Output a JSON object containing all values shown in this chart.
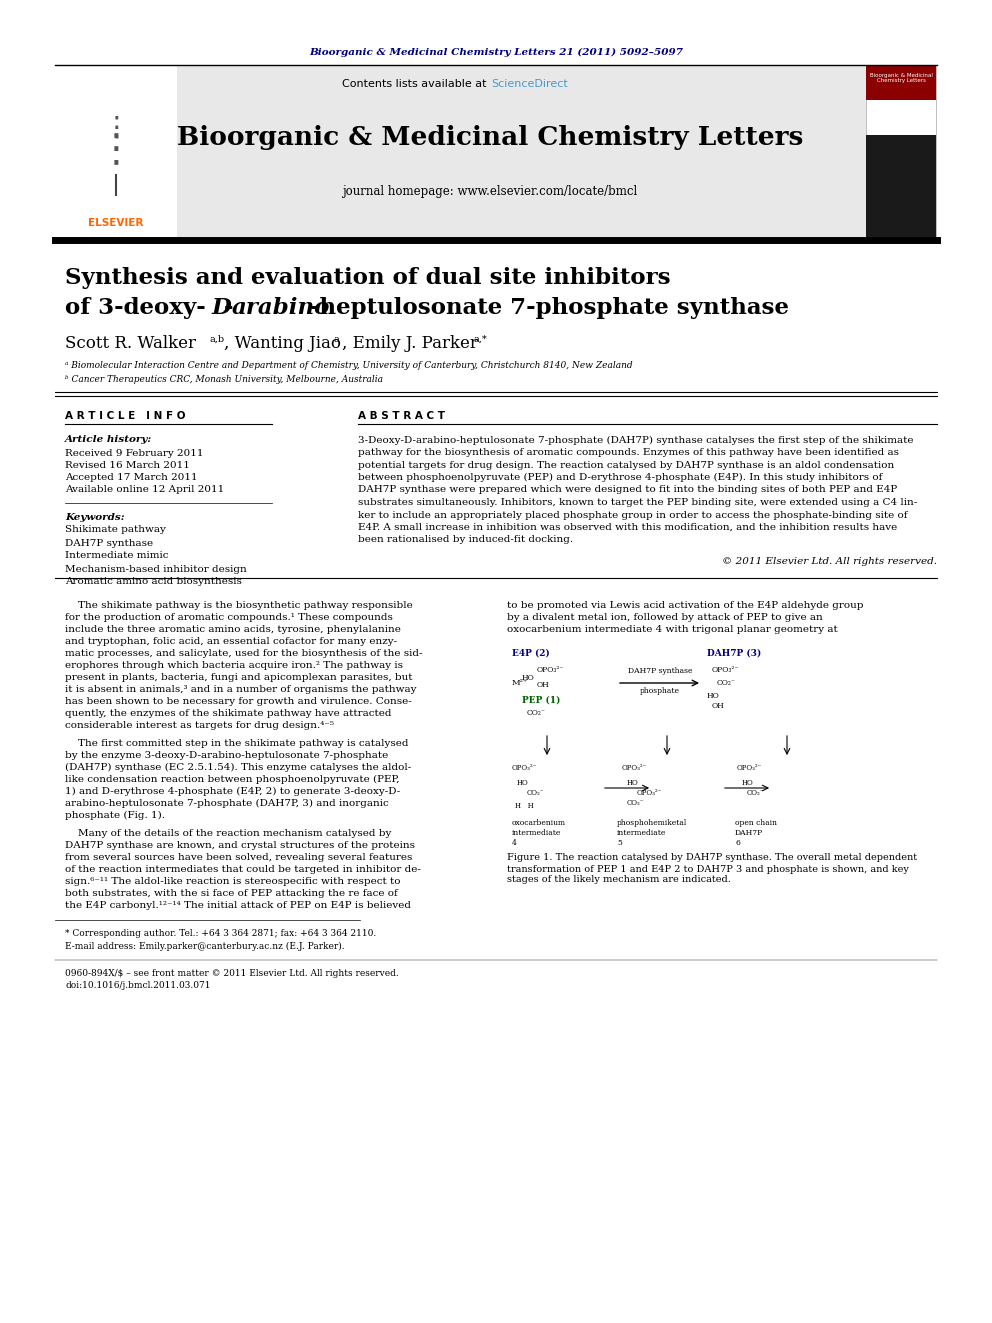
{
  "page_bg": "#ffffff",
  "journal_ref": "Bioorganic & Medicinal Chemistry Letters 21 (2011) 5092–5097",
  "journal_ref_color": "#000080",
  "journal_name": "Bioorganic & Medicinal Chemistry Letters",
  "journal_homepage": "journal homepage: www.elsevier.com/locate/bmcl",
  "contents_text": "Contents lists available at ",
  "sciencedirect_text": "ScienceDirect",
  "sciencedirect_color": "#4499cc",
  "header_bg": "#e8e8e8",
  "title_line1": "Synthesis and evaluation of dual site inhibitors",
  "article_info_header": "A R T I C L E   I N F O",
  "abstract_header": "A B S T R A C T",
  "article_history_label": "Article history:",
  "received": "Received 9 February 2011",
  "revised": "Revised 16 March 2011",
  "accepted": "Accepted 17 March 2011",
  "available": "Available online 12 April 2011",
  "keywords_label": "Keywords:",
  "keywords": [
    "Shikimate pathway",
    "DAH7P synthase",
    "Intermediate mimic",
    "Mechanism-based inhibitor design",
    "Aromatic amino acid biosynthesis"
  ],
  "copyright": "© 2011 Elsevier Ltd. All rights reserved.",
  "affil_a": "ᵃ Biomolecular Interaction Centre and Department of Chemistry, University of Canterbury, Christchurch 8140, New Zealand",
  "affil_b": "ᵇ Cancer Therapeutics CRC, Monash University, Melbourne, Australia",
  "footnote1": "* Corresponding author. Tel.: +64 3 364 2871; fax: +64 3 364 2110.",
  "footnote2": "E-mail address: Emily.parker@canterbury.ac.nz (E.J. Parker).",
  "footer1": "0960-894X/$ – see front matter © 2011 Elsevier Ltd. All rights reserved.",
  "footer2": "doi:10.1016/j.bmcl.2011.03.071",
  "abstract_lines": [
    "3-Deoxy-D-arabino-heptulosonate 7-phosphate (DAH7P) synthase catalyses the first step of the shikimate",
    "pathway for the biosynthesis of aromatic compounds. Enzymes of this pathway have been identified as",
    "potential targets for drug design. The reaction catalysed by DAH7P synthase is an aldol condensation",
    "between phosphoenolpyruvate (PEP) and D-erythrose 4-phosphate (E4P). In this study inhibitors of",
    "DAH7P synthase were prepared which were designed to fit into the binding sites of both PEP and E4P",
    "substrates simultaneously. Inhibitors, known to target the PEP binding site, were extended using a C4 lin-",
    "ker to include an appropriately placed phosphate group in order to access the phosphate-binding site of",
    "E4P. A small increase in inhibition was observed with this modification, and the inhibition results have",
    "been rationalised by induced-fit docking."
  ],
  "col1_lines_p1": [
    "    The shikimate pathway is the biosynthetic pathway responsible",
    "for the production of aromatic compounds.¹ These compounds",
    "include the three aromatic amino acids, tyrosine, phenylalanine",
    "and tryptophan, folic acid, an essential cofactor for many enzy-",
    "matic processes, and salicylate, used for the biosynthesis of the sid-",
    "erophores through which bacteria acquire iron.² The pathway is",
    "present in plants, bacteria, fungi and apicomplexan parasites, but",
    "it is absent in animals,³ and in a number of organisms the pathway",
    "has been shown to be necessary for growth and virulence. Conse-",
    "quently, the enzymes of the shikimate pathway have attracted",
    "considerable interest as targets for drug design.⁴⁻⁵"
  ],
  "col1_lines_p2": [
    "    The first committed step in the shikimate pathway is catalysed",
    "by the enzyme 3-deoxy-D-arabino-heptulosonate 7-phosphate",
    "(DAH7P) synthase (EC 2.5.1.54). This enzyme catalyses the aldol-",
    "like condensation reaction between phosphoenolpyruvate (PEP,",
    "1) and D-erythrose 4-phosphate (E4P, 2) to generate 3-deoxy-D-",
    "arabino-heptulosonate 7-phosphate (DAH7P, 3) and inorganic",
    "phosphate (Fig. 1)."
  ],
  "col1_lines_p3": [
    "    Many of the details of the reaction mechanism catalysed by",
    "DAH7P synthase are known, and crystal structures of the proteins",
    "from several sources have been solved, revealing several features",
    "of the reaction intermediates that could be targeted in inhibitor de-",
    "sign.⁶⁻¹¹ The aldol-like reaction is stereospecific with respect to",
    "both substrates, with the si face of PEP attacking the re face of",
    "the E4P carbonyl.¹²⁻¹⁴ The initial attack of PEP on E4P is believed"
  ],
  "col2_lines_p1": [
    "to be promoted via Lewis acid activation of the E4P aldehyde group",
    "by a divalent metal ion, followed by attack of PEP to give an",
    "oxocarbenium intermediate 4 with trigonal planar geometry at"
  ],
  "fig_cap_lines": [
    "Figure 1. The reaction catalysed by DAH7P synthase. The overall metal dependent",
    "transformation of PEP 1 and E4P 2 to DAH7P 3 and phosphate is shown, and key",
    "stages of the likely mechanism are indicated."
  ]
}
